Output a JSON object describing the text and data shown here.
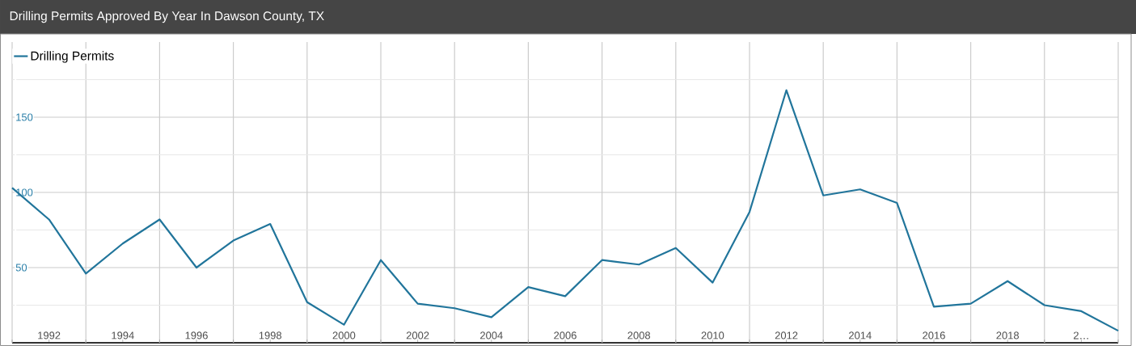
{
  "chart_data": {
    "type": "line",
    "title": "Drilling Permits Approved By Year In Dawson County, TX",
    "x": [
      1991,
      1992,
      1993,
      1994,
      1995,
      1996,
      1997,
      1998,
      1999,
      2000,
      2001,
      2002,
      2003,
      2004,
      2005,
      2006,
      2007,
      2008,
      2009,
      2010,
      2011,
      2012,
      2013,
      2014,
      2015,
      2016,
      2017,
      2018,
      2019,
      2020,
      2021
    ],
    "series": [
      {
        "name": "Drilling Permits",
        "color": "#21759b",
        "values": [
          103,
          82,
          46,
          66,
          82,
          50,
          68,
          79,
          27,
          12,
          55,
          26,
          23,
          17,
          37,
          31,
          55,
          52,
          63,
          40,
          87,
          168,
          98,
          102,
          93,
          24,
          26,
          41,
          25,
          21,
          8
        ]
      }
    ],
    "xlim": [
      1991,
      2021
    ],
    "xticks": [
      {
        "value": 1991,
        "label": null
      },
      1992,
      {
        "value": 1993,
        "label": null
      },
      1994,
      {
        "value": 1995,
        "label": null
      },
      1996,
      {
        "value": 1997,
        "label": null
      },
      1998,
      {
        "value": 1999,
        "label": null
      },
      2000,
      {
        "value": 2001,
        "label": null
      },
      2002,
      {
        "value": 2003,
        "label": null
      },
      2004,
      {
        "value": 2005,
        "label": null
      },
      2006,
      {
        "value": 2007,
        "label": null
      },
      2008,
      {
        "value": 2009,
        "label": null
      },
      2010,
      {
        "value": 2011,
        "label": null
      },
      2012,
      {
        "value": 2013,
        "label": null
      },
      2014,
      {
        "value": 2015,
        "label": null
      },
      2016,
      {
        "value": 2017,
        "label": null
      },
      2018,
      {
        "value": 2019,
        "label": null
      },
      {
        "value": 2020,
        "label": "2…"
      },
      {
        "value": 2021,
        "label": null
      }
    ],
    "ylim": [
      0,
      200
    ],
    "yticks": [
      {
        "value": 25,
        "label": null
      },
      50,
      {
        "value": 75,
        "label": null
      },
      100,
      {
        "value": 125,
        "label": null
      },
      150,
      {
        "value": 175,
        "label": null
      }
    ],
    "grid": true,
    "legend": "top left",
    "line_style": "solid"
  }
}
